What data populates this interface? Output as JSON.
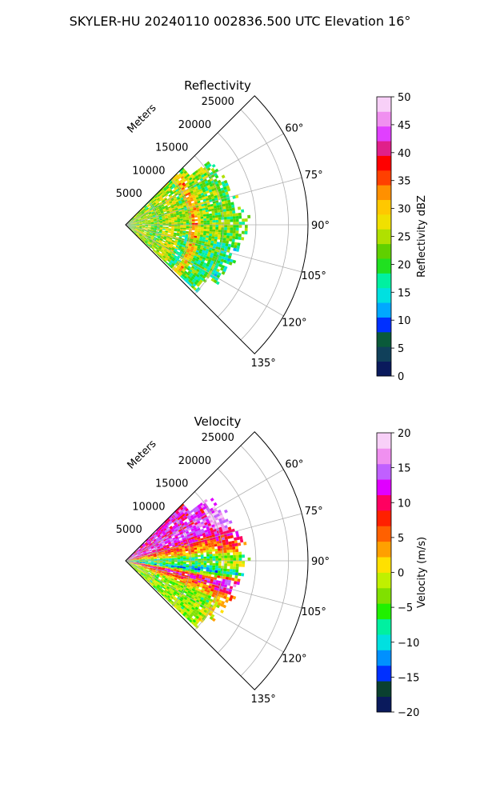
{
  "figure": {
    "suptitle": "SKYLER-HU  20240110  002836.500 UTC Elevation 16°"
  },
  "chart_data": [
    {
      "type": "polar-sector",
      "title": "Reflectivity",
      "radial_label": "Meters",
      "radial_ticks": [
        5000,
        10000,
        15000,
        20000,
        25000
      ],
      "radial_tick_labels": [
        "5000",
        "10000",
        "15000",
        "20000",
        "25000"
      ],
      "r_max": 28000,
      "angle_range_deg": [
        45,
        135
      ],
      "angle_ticks_deg": [
        60,
        75,
        90,
        105,
        120,
        135
      ],
      "angle_tick_labels": [
        "60°",
        "75°",
        "90°",
        "105°",
        "120°",
        "135°"
      ],
      "grid": true,
      "data_extent_m": 18000,
      "colorbar": {
        "label": "Reflectivity dBZ",
        "min": 0,
        "max": 50,
        "ticks": [
          0,
          5,
          10,
          15,
          20,
          25,
          30,
          35,
          40,
          45,
          50
        ],
        "tick_labels": [
          "0",
          "5",
          "10",
          "15",
          "20",
          "25",
          "30",
          "35",
          "40",
          "45",
          "50"
        ],
        "colors": [
          "#0a1a5c",
          "#10405a",
          "#0a5a3a",
          "#0030ff",
          "#00a8ff",
          "#00e0e0",
          "#00f0a0",
          "#20e020",
          "#60d000",
          "#b0e000",
          "#f0e000",
          "#ffc800",
          "#ff9000",
          "#ff4000",
          "#ff0000",
          "#e0208a",
          "#e040ff",
          "#f090f0",
          "#f8d0f8"
        ]
      },
      "field": {
        "base_value": 20,
        "bands": [
          {
            "r": 2500,
            "value": 25,
            "width": 2200
          },
          {
            "r": 7000,
            "value": 26,
            "width": 2000
          },
          {
            "r": 10500,
            "value": 33,
            "width": 900
          },
          {
            "r": 13500,
            "value": 23,
            "width": 3000
          }
        ],
        "noise": 6
      }
    },
    {
      "type": "polar-sector",
      "title": "Velocity",
      "radial_label": "Meters",
      "radial_ticks": [
        5000,
        10000,
        15000,
        20000,
        25000
      ],
      "radial_tick_labels": [
        "5000",
        "10000",
        "15000",
        "20000",
        "25000"
      ],
      "r_max": 28000,
      "angle_range_deg": [
        45,
        135
      ],
      "angle_ticks_deg": [
        60,
        75,
        90,
        105,
        120,
        135
      ],
      "angle_tick_labels": [
        "60°",
        "75°",
        "90°",
        "105°",
        "120°",
        "135°"
      ],
      "grid": true,
      "data_extent_m": 18000,
      "colorbar": {
        "label": "Velocity (m/s)",
        "min": -20,
        "max": 20,
        "ticks": [
          -20,
          -15,
          -10,
          -5,
          0,
          5,
          10,
          15,
          20
        ],
        "tick_labels": [
          "−20",
          "−15",
          "−10",
          "−5",
          "0",
          "5",
          "10",
          "15",
          "20"
        ],
        "colors": [
          "#0a1a5c",
          "#0a4030",
          "#0030ff",
          "#0090ff",
          "#00e0e0",
          "#00f0a0",
          "#20f000",
          "#80e000",
          "#c0f000",
          "#ffe000",
          "#ffa000",
          "#ff6000",
          "#ff2000",
          "#ff0060",
          "#e000ff",
          "#c060ff",
          "#f090f0",
          "#f8d0f8"
        ]
      },
      "field": {
        "angular_profile": [
          {
            "deg": 60,
            "value": 12
          },
          {
            "deg": 66,
            "value": 15
          },
          {
            "deg": 75,
            "value": 8
          },
          {
            "deg": 84,
            "value": 2
          },
          {
            "deg": 88,
            "value": -8
          },
          {
            "deg": 92,
            "value": -4
          },
          {
            "deg": 97,
            "value": -12
          },
          {
            "deg": 102,
            "value": 12
          },
          {
            "deg": 108,
            "value": 5
          },
          {
            "deg": 114,
            "value": -3
          }
        ],
        "noise": 4
      }
    }
  ]
}
